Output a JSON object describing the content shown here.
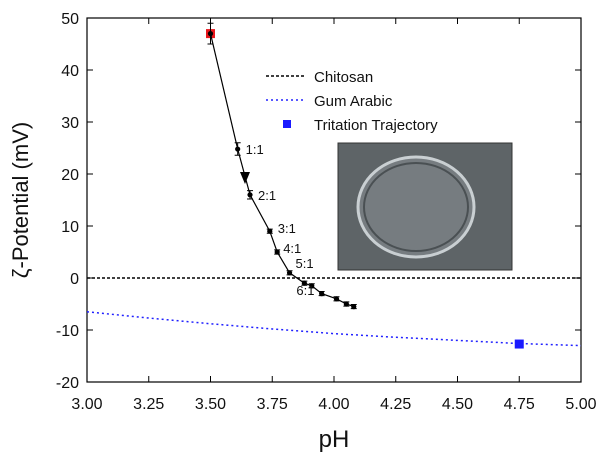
{
  "chart_data": {
    "type": "line",
    "x_label": "pH",
    "y_label": "ζ-Potential (mV)",
    "xlim": [
      3,
      5
    ],
    "xticks": [
      {
        "value": 3,
        "label": "3.00"
      },
      {
        "value": 3.25,
        "label": "3.25"
      },
      {
        "value": 3.5,
        "label": "3.50"
      },
      {
        "value": 3.75,
        "label": "3.75"
      },
      {
        "value": 4,
        "label": "4.00"
      },
      {
        "value": 4.25,
        "label": "4.25"
      },
      {
        "value": 4.5,
        "label": "4.50"
      },
      {
        "value": 4.75,
        "label": "4.75"
      },
      {
        "value": 5,
        "label": "5.00"
      }
    ],
    "ylim": [
      -20,
      50
    ],
    "yticks": [
      -20,
      -10,
      0,
      10,
      20,
      30,
      40,
      50
    ],
    "legend": "upper center",
    "series": [
      {
        "name": "Chitosan",
        "style": "dashed",
        "color": "#000000",
        "x": [
          3,
          5
        ],
        "values": [
          0,
          0
        ]
      },
      {
        "name": "Gum Arabic",
        "style": "dotted",
        "color": "#2020ff",
        "x": [
          3,
          3.25,
          3.5,
          3.75,
          4,
          4.25,
          4.5,
          4.75,
          5
        ],
        "values": [
          -6.5,
          -7.7,
          -8.8,
          -9.8,
          -10.7,
          -11.4,
          -12,
          -12.6,
          -13
        ]
      },
      {
        "name": "Tritation Trajectory",
        "style": "markers",
        "color": "#1a1aff",
        "colors": [
          "#e8161b",
          "#1a1aff"
        ],
        "x": [
          3.5,
          4.75
        ],
        "values": [
          47,
          -12.7
        ]
      },
      {
        "style": "connected",
        "color": "#000000",
        "x": [
          3.5,
          3.61,
          3.66,
          3.74,
          3.77,
          3.82,
          3.88,
          3.91,
          3.95,
          4.01,
          4.05,
          4.08
        ],
        "values": [
          47,
          24.8,
          16,
          9,
          5,
          1,
          -1,
          -1.5,
          -3,
          -4,
          -5,
          -5.5
        ],
        "errors": [
          2,
          1.2,
          0.8,
          0.4,
          0.4,
          0.4,
          0.4,
          0.4,
          0.4,
          0.4,
          0.4,
          0.4
        ]
      }
    ],
    "annotations": [
      "1:1",
      "2:1",
      "3:1",
      "4:1",
      "5:1",
      "6:1"
    ]
  }
}
